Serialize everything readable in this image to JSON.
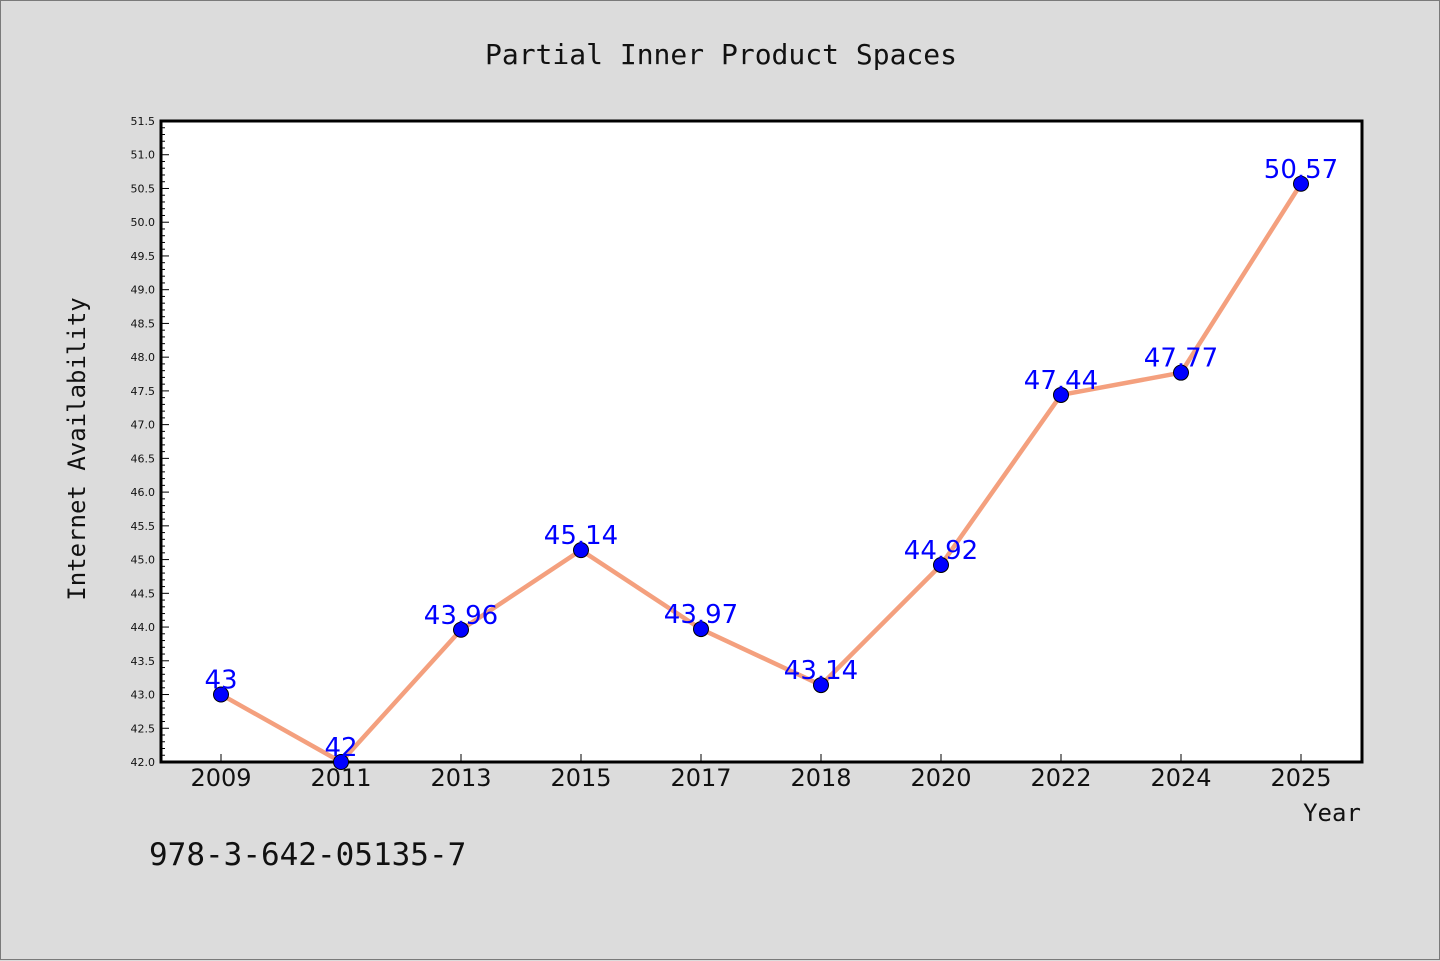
{
  "chart_data": {
    "type": "line",
    "title": "Partial Inner Product Spaces",
    "xlabel": "Year",
    "ylabel": "Internet Availability",
    "categories": [
      "2009",
      "2011",
      "2013",
      "2015",
      "2017",
      "2018",
      "2020",
      "2022",
      "2024",
      "2025"
    ],
    "series": [
      {
        "values": [
          43,
          42,
          43.96,
          45.14,
          43.97,
          43.14,
          44.92,
          47.44,
          47.77,
          50.57
        ],
        "data_labels": [
          "43",
          "42",
          "43.96",
          "45.14",
          "43.97",
          "43.14",
          "44.92",
          "47.44",
          "47.77",
          "50.57"
        ],
        "line_color": "#f4a07e",
        "marker_color": "#0000ff"
      }
    ],
    "ylim": [
      42.0,
      51.5
    ],
    "yticks": [
      "42.0",
      "42.5",
      "43.0",
      "43.5",
      "44.0",
      "44.5",
      "45.0",
      "45.5",
      "46.0",
      "46.5",
      "47.0",
      "47.5",
      "48.0",
      "48.5",
      "49.0",
      "49.5",
      "50.0",
      "50.5",
      "51.0",
      "51.5"
    ],
    "grid": false,
    "legend": "none"
  },
  "annotation": "978-3-642-05135-7",
  "colors": {
    "background": "#dcdcdc",
    "plot_background": "#ffffff",
    "line": "#f4a07e",
    "marker": "#0000ff",
    "data_label": "#0000ff"
  }
}
